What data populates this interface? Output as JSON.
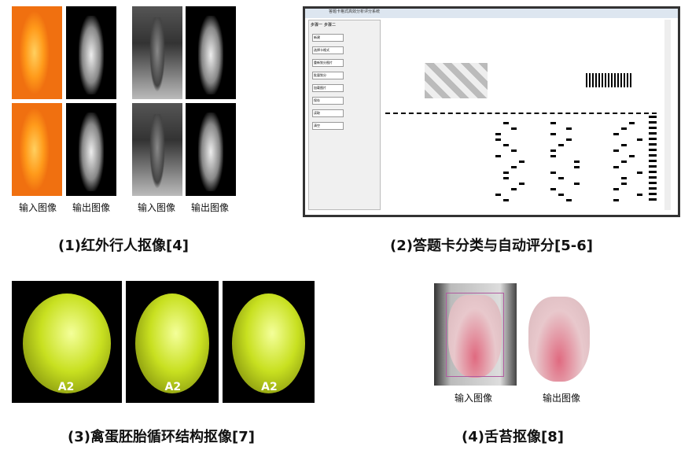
{
  "panels": [
    {
      "caption": "(1)红外行人抠像[4]",
      "labels": [
        "输入图像",
        "输出图像",
        "输入图像",
        "输出图像"
      ]
    },
    {
      "caption": "(2)答题卡分类与自动评分[5-6]",
      "window_title": "答题卡格式高效分析评分系统",
      "sidebar": {
        "tabs": [
          "步骤一",
          "步骤二"
        ],
        "buttons": [
          "新建",
          "选择卡格式",
          "重新划分图片",
          "批量划分",
          "加载图片",
          "保存",
          "读取",
          "清空"
        ]
      }
    },
    {
      "caption": "(3)禽蛋胚胎循环结构抠像[7]",
      "egg_marks": [
        "A2",
        "A2",
        "A2"
      ]
    },
    {
      "caption": "(4)舌苔抠像[8]",
      "labels": [
        "输入图像",
        "输出图像"
      ]
    }
  ]
}
